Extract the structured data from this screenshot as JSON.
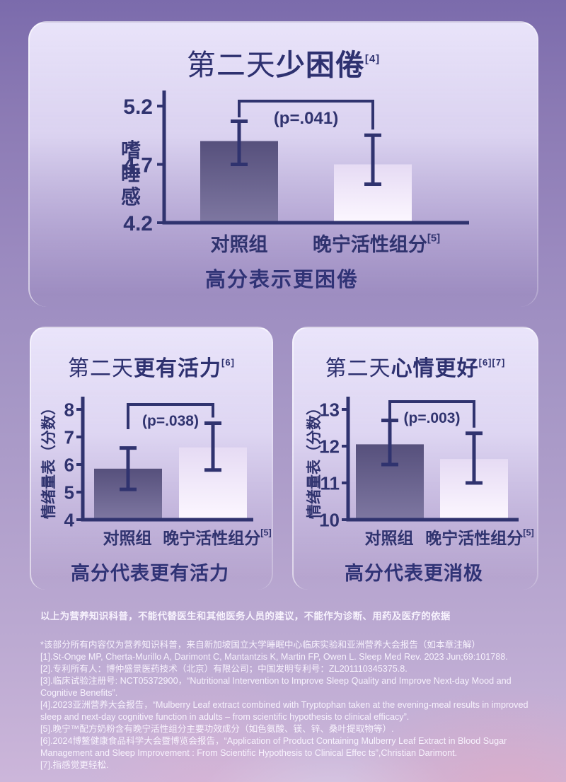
{
  "colors": {
    "navy": "#30336f",
    "bar_dark_top": "#56507c",
    "bar_dark_bottom": "#7e77a1",
    "bar_light_top": "#e6dbf4",
    "bar_light_bottom": "#fcf7ff",
    "page_purple_top": "#7b6bac",
    "page_purple_bottom": "#ccb6da",
    "card_background": "#eae5fa"
  },
  "chart_data": [
    {
      "type": "bar",
      "title": {
        "prefix": "第二天",
        "bold": "少困倦",
        "sup": "[4]"
      },
      "ylabel": "嗜睡感",
      "ylabel_orientation": "stacked",
      "ymin": 4.2,
      "ymax": 5.2,
      "yticks": [
        5.2,
        4.7,
        4.2
      ],
      "categories": [
        {
          "label": "对照组",
          "sup": ""
        },
        {
          "label": "晚宁活性组分",
          "sup": "[5]"
        }
      ],
      "series": [
        {
          "name": "对照组",
          "mean": 4.9,
          "ci": [
            4.7,
            5.07
          ],
          "style": "dark"
        },
        {
          "name": "晚宁活性组分",
          "mean": 4.7,
          "ci": [
            4.53,
            4.95
          ],
          "style": "light"
        }
      ],
      "p_label": "(p=.041)",
      "caption": "高分表示更困倦",
      "legend": "none",
      "grid": false
    },
    {
      "type": "bar",
      "title": {
        "prefix": "第二天",
        "bold": "更有活力",
        "sup": "[6]"
      },
      "ylabel": "情绪量表（分数）",
      "ylabel_orientation": "rotated",
      "ymin": 4,
      "ymax": 8,
      "yticks": [
        8,
        7,
        6,
        5,
        4
      ],
      "categories": [
        {
          "label": "对照组",
          "sup": ""
        },
        {
          "label": "晚宁活性组分",
          "sup": "[5]"
        }
      ],
      "series": [
        {
          "name": "对照组",
          "mean": 5.85,
          "ci": [
            5.1,
            6.6
          ],
          "style": "dark"
        },
        {
          "name": "晚宁活性组分",
          "mean": 6.62,
          "ci": [
            5.8,
            7.5
          ],
          "style": "light"
        }
      ],
      "p_label": "(p=.038)",
      "caption": "高分代表更有活力",
      "legend": "none",
      "grid": false
    },
    {
      "type": "bar",
      "title": {
        "prefix": "第二天",
        "bold": "心情更好",
        "sup": "[6][7]"
      },
      "ylabel": "情绪量表（分数）",
      "ylabel_orientation": "rotated",
      "ymin": 10,
      "ymax": 13,
      "yticks": [
        13,
        12,
        11,
        10
      ],
      "categories": [
        {
          "label": "对照组",
          "sup": ""
        },
        {
          "label": "晚宁活性组分",
          "sup": "[5]"
        }
      ],
      "series": [
        {
          "name": "对照组",
          "mean": 12.05,
          "ci": [
            11.5,
            12.7
          ],
          "style": "dark"
        },
        {
          "name": "晚宁活性组分",
          "mean": 11.65,
          "ci": [
            11.0,
            12.35
          ],
          "style": "light"
        }
      ],
      "p_label": "(p=.003)",
      "caption": "高分代表更消极",
      "legend": "none",
      "grid": false
    }
  ],
  "footer": {
    "disclaimer": "以上为营养知识科普，不能代替医生和其他医务人员的建议，不能作为诊断、用药及医疗的依据",
    "note": "*该部分所有内容仅为营养知识科普，来自新加坡国立大学睡眠中心临床实验和亚洲营养大会报告（如本章注解）",
    "references": [
      "[1].St-Onge MP, Cherta-Murillo A, Darimont C, Mantantzis K, Martin FP, Owen L. Sleep Med Rev. 2023 Jun;69:101788.",
      "[2].专利所有人：博仲盛景医药技术（北京）有限公司；中国发明专利号：ZL201110345375.8.",
      "[3].临床试验注册号: NCT05372900，“Nutritional Intervention to Improve Sleep Quality and Improve Next-day Mood and Cognitive Benefits”.",
      "[4].2023亚洲营养大会报告，“Mulberry Leaf extract combined with Tryptophan taken at the evening-meal results in improved sleep and next-day cognitive function in adults – from scientific hypothesis to clinical efficacy”.",
      "[5].晚宁™配方奶粉含有晚宁活性组分主要功效成分（如色氨酸、镁、锌、桑叶提取物等）.",
      "[6].2024博鳌健康食品科学大会暨博览会报告，“Application of Product Containing Mulberry Leaf Extract in Blood Sugar Management and Sleep Improvement : From Scientific Hypothesis to Clinical Effec ts”,Christian Darimont.",
      "[7].指感觉更轻松."
    ]
  }
}
